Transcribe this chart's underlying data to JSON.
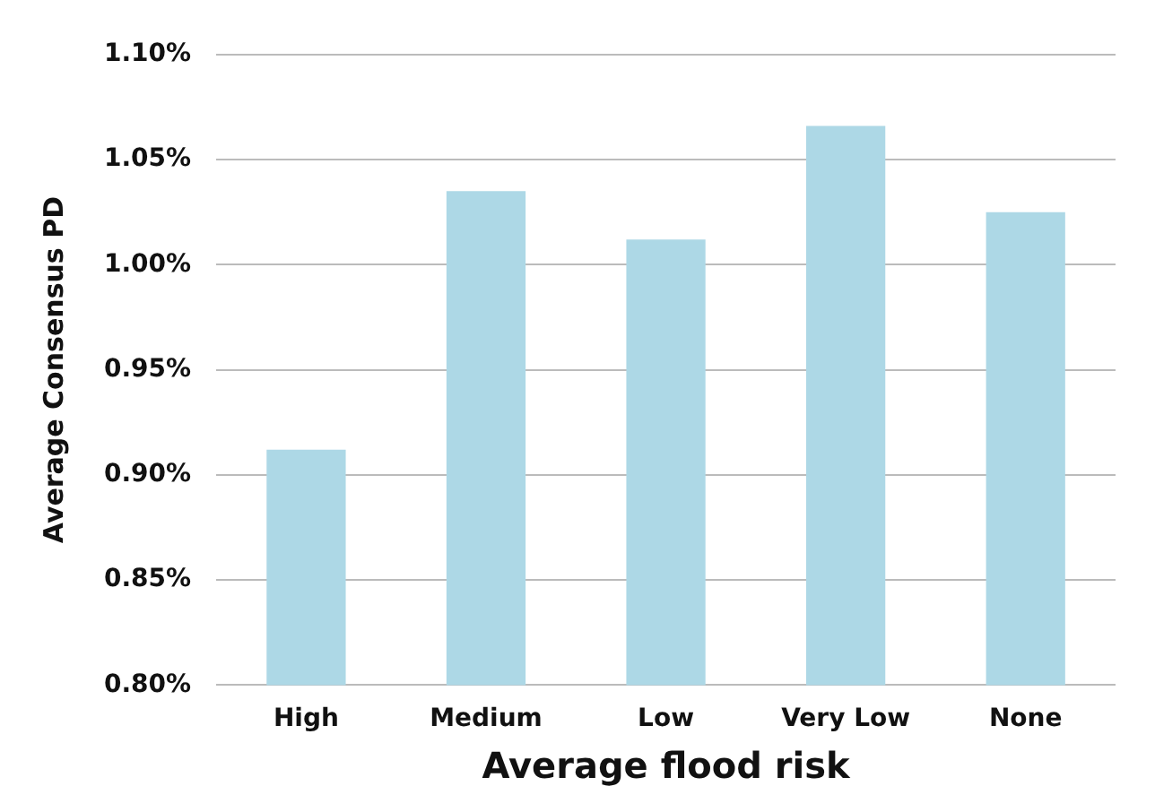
{
  "chart_data": {
    "type": "bar",
    "xlabel": "Average flood risk",
    "ylabel": "Average Consensus PD",
    "categories": [
      "High",
      "Medium",
      "Low",
      "Very Low",
      "None"
    ],
    "values": [
      0.912,
      1.035,
      1.012,
      1.066,
      1.025
    ],
    "color": "#add8e6",
    "ylim": [
      0.8,
      1.1
    ],
    "yticks": [
      {
        "value": 0.8,
        "label": "0.80%"
      },
      {
        "value": 0.85,
        "label": "0.85%"
      },
      {
        "value": 0.9,
        "label": "0.90%"
      },
      {
        "value": 0.95,
        "label": "0.95%"
      },
      {
        "value": 1.0,
        "label": "1.00%"
      },
      {
        "value": 1.05,
        "label": "1.05%"
      },
      {
        "value": 1.1,
        "label": "1.10%"
      }
    ],
    "grid": "y",
    "legend": false
  }
}
